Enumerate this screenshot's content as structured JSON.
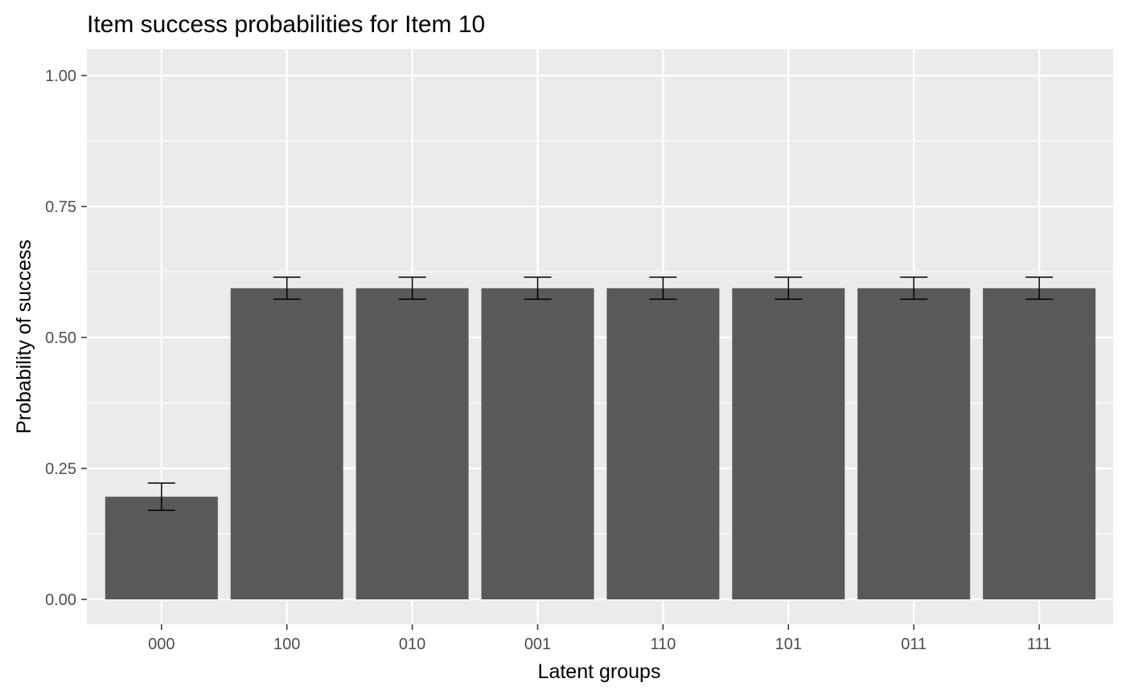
{
  "chart_data": {
    "type": "bar",
    "title": "Item success probabilities for Item 10",
    "xlabel": "Latent groups",
    "ylabel": "Probability of success",
    "categories": [
      "000",
      "100",
      "010",
      "001",
      "110",
      "101",
      "011",
      "111"
    ],
    "values": [
      0.196,
      0.594,
      0.594,
      0.594,
      0.594,
      0.594,
      0.594,
      0.594
    ],
    "error_low": [
      0.17,
      0.573,
      0.573,
      0.573,
      0.573,
      0.573,
      0.573,
      0.573
    ],
    "error_high": [
      0.222,
      0.615,
      0.615,
      0.615,
      0.615,
      0.615,
      0.615,
      0.615
    ],
    "ylim": [
      0,
      1
    ],
    "yticks": [
      0,
      0.25,
      0.5,
      0.75,
      1
    ],
    "ytick_labels": [
      "0.00",
      "0.25",
      "0.50",
      "0.75",
      "1.00"
    ],
    "grid": true,
    "legend": "none",
    "colors": {
      "bar": "#595959",
      "panel": "#ebebeb",
      "grid": "#ffffff",
      "error_bar": "#000000",
      "tick_label": "#4d4d4d"
    }
  }
}
